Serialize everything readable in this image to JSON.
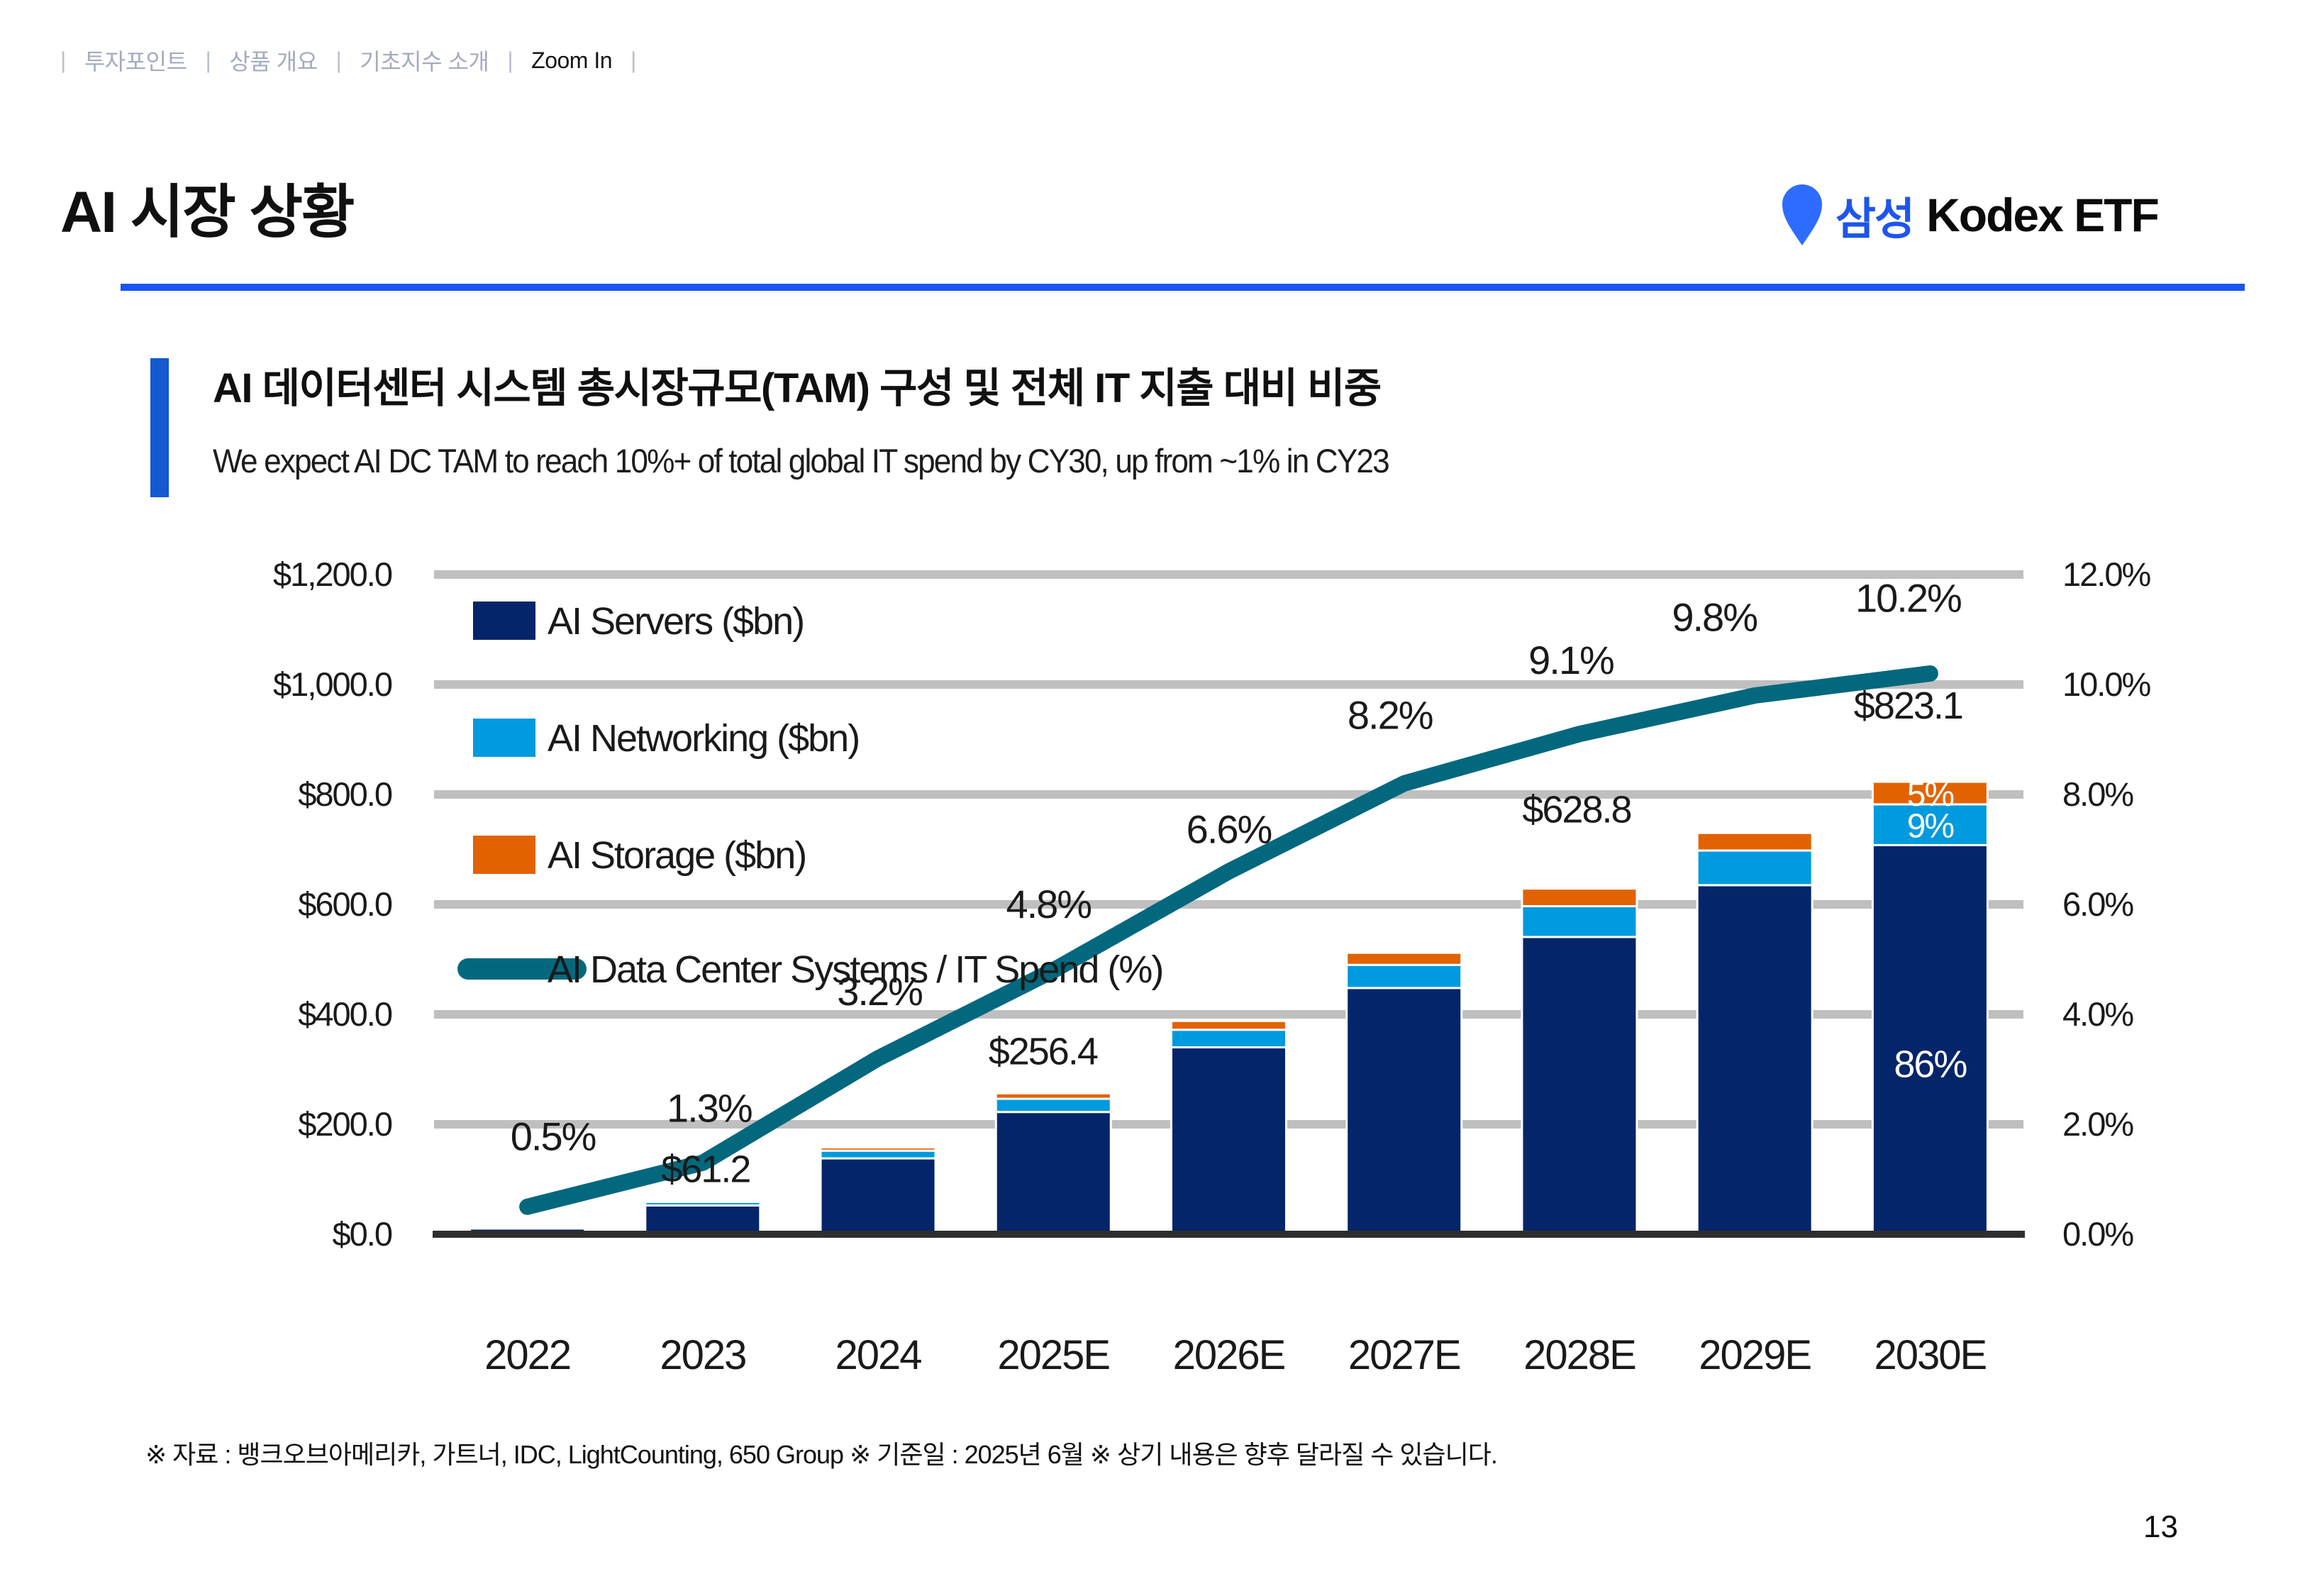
{
  "nav": {
    "separator": "|",
    "items": [
      {
        "label": "투자포인트",
        "active": false
      },
      {
        "label": "상품 개요",
        "active": false
      },
      {
        "label": "기초지수 소개",
        "active": false
      },
      {
        "label": "Zoom In",
        "active": true
      }
    ]
  },
  "header": {
    "title": "AI 시장 상황",
    "logo": {
      "brand_kr": "삼성",
      "brand_en": "Kodex ETF"
    }
  },
  "section": {
    "heading": "AI 데이터센터 시스템 총시장규모(TAM) 구성 및 전체 IT 지출 대비 비중",
    "subheading": "We expect AI DC TAM to reach 10%+ of total global IT spend by CY30, up from ~1% in CY23"
  },
  "chart_data": {
    "type": "bar",
    "subtype": "stacked-bars-with-line",
    "categories": [
      "2022",
      "2023",
      "2024",
      "2025E",
      "2026E",
      "2027E",
      "2028E",
      "2029E",
      "2030E"
    ],
    "series": [
      {
        "name": "AI Servers ($bn)",
        "color": "#042569",
        "values": [
          10.5,
          52.4,
          138,
          222.4,
          340,
          448,
          540.8,
          635,
          707.9
        ]
      },
      {
        "name": "AI Networking ($bn)",
        "color": "#009ade",
        "values": [
          1.2,
          6.5,
          14,
          24,
          32,
          42,
          56,
          63,
          74.1
        ]
      },
      {
        "name": "AI Storage ($bn)",
        "color": "#e36200",
        "values": [
          0.5,
          2.3,
          6,
          10,
          16,
          22,
          32,
          32,
          41.1
        ]
      }
    ],
    "line_series": {
      "name": "AI Data Center Systems / IT Spend (%)",
      "color": "#03687e",
      "values": [
        0.5,
        1.3,
        3.2,
        4.8,
        6.6,
        8.2,
        9.1,
        9.8,
        10.2
      ]
    },
    "line_point_labels": [
      "0.5%",
      "1.3%",
      "3.2%",
      "4.8%",
      "6.6%",
      "8.2%",
      "9.1%",
      "9.8%",
      "10.2%"
    ],
    "total_labels": [
      {
        "category": "2023",
        "text": "$61.2"
      },
      {
        "category": "2025E",
        "text": "$256.4"
      },
      {
        "category": "2028E",
        "text": "$628.8"
      },
      {
        "category": "2030E",
        "text": "$823.1"
      }
    ],
    "inbar_labels": [
      {
        "category": "2030E",
        "segment": 2,
        "text": "5%"
      },
      {
        "category": "2030E",
        "segment": 1,
        "text": "9%"
      },
      {
        "category": "2030E",
        "segment": 0,
        "text": "86%"
      }
    ],
    "left_axis": {
      "title": "",
      "min": 0,
      "max": 1200,
      "step": 200,
      "ticks": [
        "$1,200.0",
        "$1,000.0",
        "$800.0",
        "$600.0",
        "$400.0",
        "$200.0",
        "$0.0"
      ]
    },
    "right_axis": {
      "title": "",
      "min": 0,
      "max": 12,
      "step": 2,
      "ticks": [
        "12.0%",
        "10.0%",
        "8.0%",
        "6.0%",
        "4.0%",
        "2.0%",
        "0.0%"
      ]
    },
    "grid": true,
    "legend_position": "top-left",
    "legend": [
      "AI Servers ($bn)",
      "AI Networking ($bn)",
      "AI Storage ($bn)",
      "AI Data Center Systems / IT Spend (%)"
    ]
  },
  "footer": {
    "note": "※ 자료 : 뱅크오브아메리카, 가트너, IDC, LightCounting, 650 Group ※ 기준일 : 2025년 6월 ※ 상기 내용은 향후 달라질 수 있습니다.",
    "page_number": "13"
  },
  "colors": {
    "accent_rule": "#1a55f4",
    "section_bar": "#1459ce",
    "logo_pin": "#2e6bff",
    "logo_kr": "#1e55ee",
    "nav_inactive": "#a3abc0",
    "nav_active": "#151515",
    "gridline": "#bfbfbf",
    "axis_line": "#2e2e2e",
    "bar_servers": "#042569",
    "bar_networking": "#009ade",
    "bar_storage": "#e36200",
    "line_teal": "#03687e"
  }
}
